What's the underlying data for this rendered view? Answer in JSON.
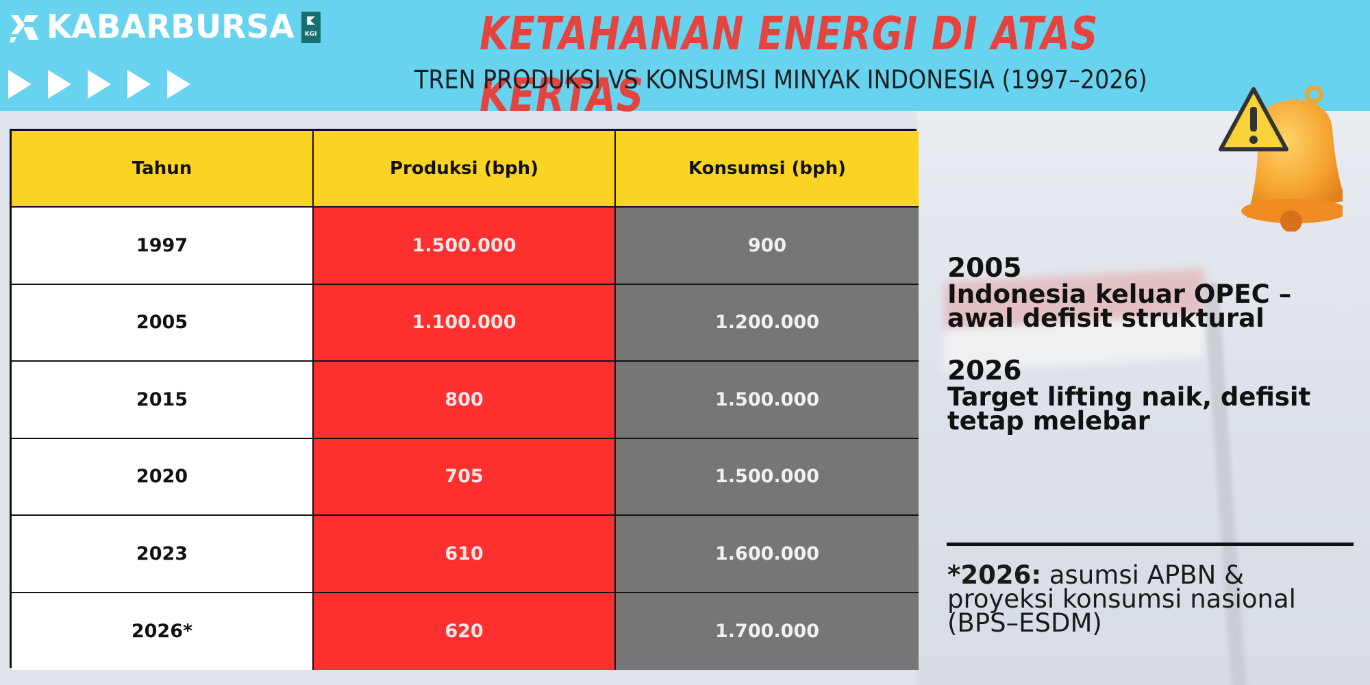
{
  "header": {
    "logo_text": "KABARBURSA",
    "logo_badge_text": "KGI",
    "title": "KETAHANAN ENERGI DI ATAS KERTAS",
    "subtitle": "TREN PRODUKSI VS KONSUMSI MINYAK INDONESIA (1997–2026)",
    "background_color": "#67d3ef",
    "title_color": "#e5433d",
    "arrow_icons": [
      "play-arrow-icon",
      "play-arrow-icon",
      "play-arrow-icon",
      "play-arrow-icon",
      "play-arrow-icon"
    ]
  },
  "table": {
    "headers": [
      "Tahun",
      "Produksi (bph)",
      "Konsumsi (bph)"
    ],
    "rows": [
      {
        "year": "1997",
        "production": "1.500.000",
        "consumption": "900"
      },
      {
        "year": "2005",
        "production": "1.100.000",
        "consumption": "1.200.000"
      },
      {
        "year": "2015",
        "production": "800",
        "consumption": "1.500.000"
      },
      {
        "year": "2020",
        "production": "705",
        "consumption": "1.500.000"
      },
      {
        "year": "2023",
        "production": "610",
        "consumption": "1.600.000"
      },
      {
        "year": "2026*",
        "production": "620",
        "consumption": "1.700.000"
      }
    ],
    "colors": {
      "header": "#fbd322",
      "production": "#fe2f2f",
      "consumption": "#767676"
    }
  },
  "notes": [
    {
      "year": "2005",
      "text": "Indonesia keluar OPEC – awal defisit struktural"
    },
    {
      "year": "2026",
      "text": "Target lifting naik, defisit tetap melebar"
    }
  ],
  "footnote": {
    "label": "*2026:",
    "text": " asumsi APBN & proyeksi konsumsi nasional (BPS–ESDM)"
  },
  "icons": {
    "warning": "warning-triangle-icon",
    "bell": "bell-icon"
  }
}
